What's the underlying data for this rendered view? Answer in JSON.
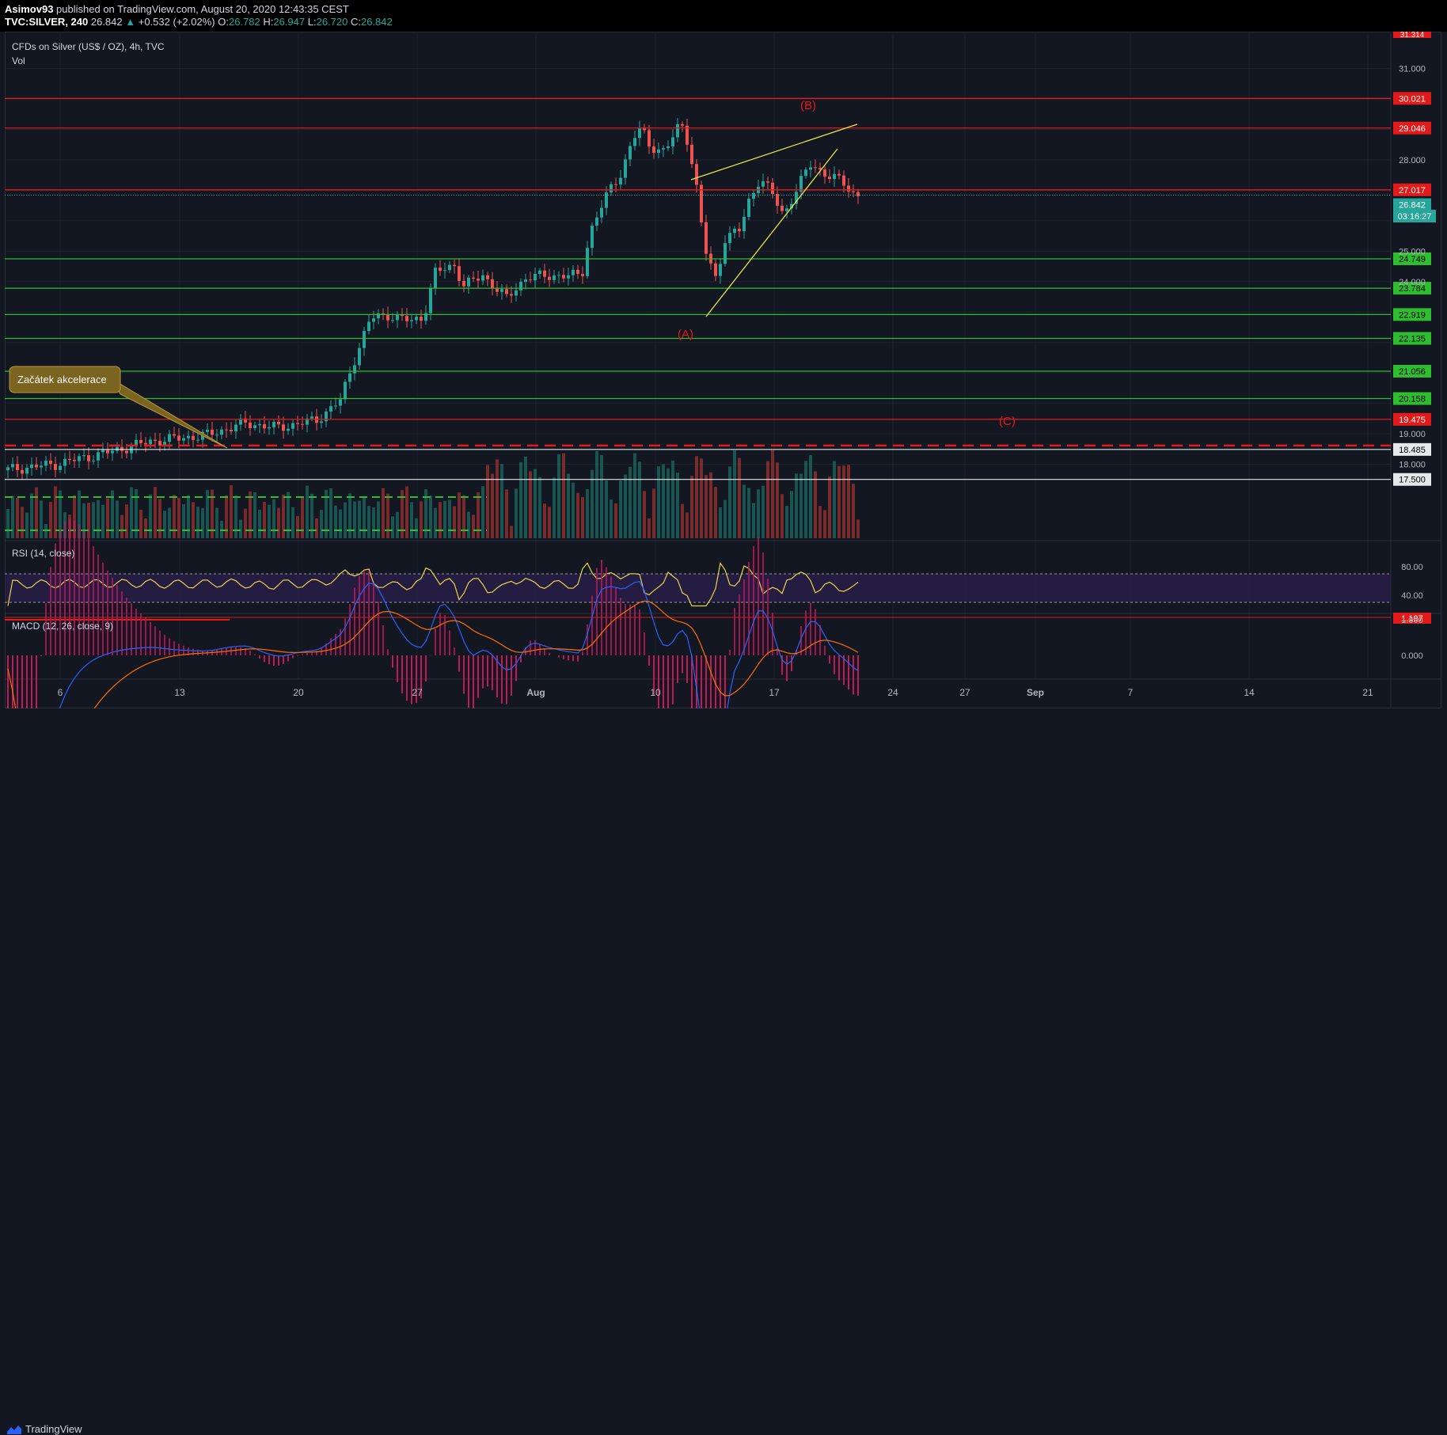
{
  "header": {
    "author": "Asimov93",
    "published_text": "published on TradingView.com, August 20, 2020 12:43:35 CEST",
    "symbol": "TVC:SILVER, 240",
    "last": "26.842",
    "change": "+0.532 (+2.02%)",
    "o_label": "O:",
    "o": "26.782",
    "h_label": "H:",
    "h": "26.947",
    "l_label": "L:",
    "l": "26.720",
    "c_label": "C:",
    "c": "26.842"
  },
  "legend": {
    "instrument": "CFDs on Silver (US$ / OZ), 4h, TVC",
    "vol": "Vol",
    "rsi": "RSI (14, close)",
    "macd": "MACD (12, 26, close, 9)"
  },
  "annotations": {
    "callout": "Začátek akcelerace",
    "wave_a": "(A)",
    "wave_b": "(B)",
    "wave_c": "(C)"
  },
  "price_axis": {
    "ticks": [
      "31.000",
      "28.000",
      "25.000",
      "24.000",
      "19.000",
      "18.000"
    ],
    "top_partial": "31.314",
    "rsi_ticks": [
      "80.00",
      "40.00"
    ],
    "macd_ticks": [
      "1.000",
      "0.000"
    ],
    "countdown": "03:16:27"
  },
  "levels": [
    {
      "price": "30.021",
      "color": "#e31a1a",
      "text_color": "#ffffff"
    },
    {
      "price": "29.046",
      "color": "#e31a1a",
      "text_color": "#ffffff"
    },
    {
      "price": "27.017",
      "color": "#e31a1a",
      "text_color": "#ffffff"
    },
    {
      "price": "26.842",
      "color": "#26a69a",
      "text_color": "#ffffff"
    },
    {
      "price": "24.749",
      "color": "#2ebd2e",
      "text_color": "#000000"
    },
    {
      "price": "23.784",
      "color": "#2ebd2e",
      "text_color": "#000000"
    },
    {
      "price": "22.919",
      "color": "#2ebd2e",
      "text_color": "#000000"
    },
    {
      "price": "22.135",
      "color": "#2ebd2e",
      "text_color": "#000000"
    },
    {
      "price": "21.056",
      "color": "#2ebd2e",
      "text_color": "#000000"
    },
    {
      "price": "20.158",
      "color": "#2ebd2e",
      "text_color": "#000000"
    },
    {
      "price": "19.475",
      "color": "#e31a1a",
      "text_color": "#ffffff"
    },
    {
      "price": "18.485",
      "color": "#ffffff",
      "text_color": "#000000"
    },
    {
      "price": "17.500",
      "color": "#ffffff",
      "text_color": "#000000"
    }
  ],
  "macd_level": "1.197",
  "time_axis": [
    "6",
    "13",
    "20",
    "27",
    "Aug",
    "10",
    "17",
    "24",
    "27",
    "Sep",
    "7",
    "14",
    "21"
  ],
  "colors": {
    "up": "#26a69a",
    "down": "#ef5350",
    "resistance": "#e31a1a",
    "support": "#2ebd2e",
    "wedge": "#e8e34a",
    "rsi": "#e8d44a",
    "macd": "#2962ff",
    "signal": "#ff6d00",
    "callout_bg": "#7a6420"
  },
  "footer": {
    "brand": "TradingView",
    "brand_icon": "tradingview-logo-icon"
  }
}
